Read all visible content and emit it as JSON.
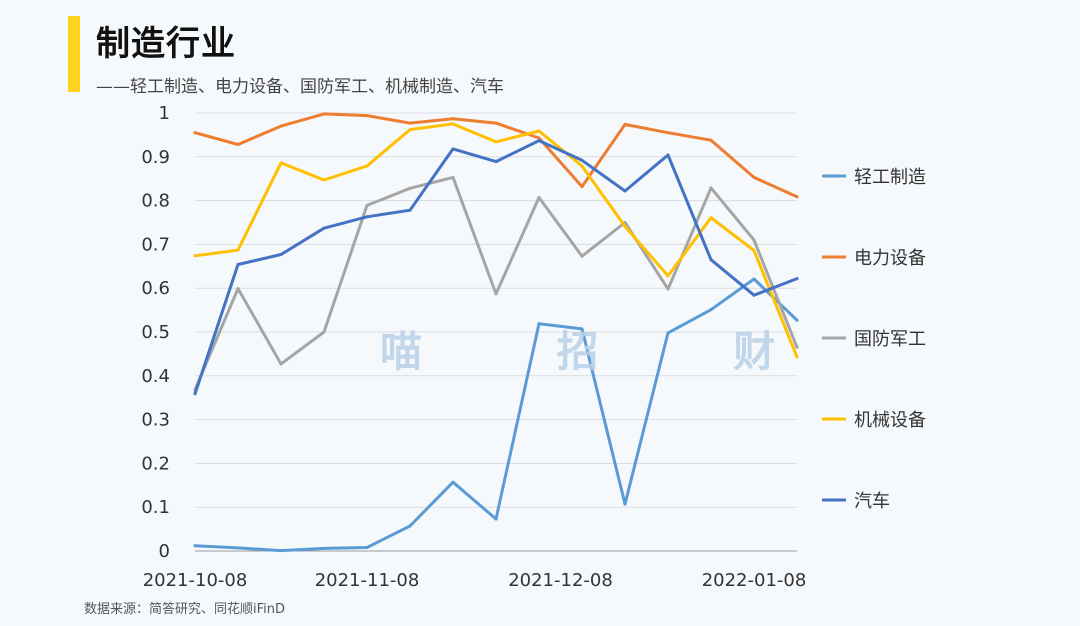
{
  "header": {
    "title": "制造行业",
    "subtitle": "——轻工制造、电力设备、国防军工、机械制造、汽车"
  },
  "watermark": "喵 招 财",
  "footer": {
    "source": "数据来源：简答研究、同花顺iFinD"
  },
  "colors": {
    "accent": "#ffd21f",
    "grid": "#d9dde2",
    "axis": "#999999"
  },
  "chart_data": {
    "type": "line",
    "x_tick_labels": [
      "2021-10-08",
      "2021-11-08",
      "2021-12-08",
      "2022-01-08"
    ],
    "y_tick_labels": [
      "0",
      "0.1",
      "0.2",
      "0.3",
      "0.4",
      "0.5",
      "0.6",
      "0.7",
      "0.8",
      "0.9",
      "1"
    ],
    "ylim": [
      0,
      1
    ],
    "num_points": 15,
    "x_tick_indices": [
      0,
      4,
      8.5,
      13
    ],
    "grid": true,
    "legend_position": "right",
    "series": [
      {
        "name": "轻工制造",
        "color": "#5b9bd5",
        "values": [
          0.012,
          0.007,
          0.001,
          0.006,
          0.008,
          0.057,
          0.157,
          0.073,
          0.519,
          0.507,
          0.107,
          0.498,
          0.551,
          0.621,
          0.527
        ]
      },
      {
        "name": "电力设备",
        "color": "#ed7d31",
        "values": [
          0.955,
          0.928,
          0.97,
          0.998,
          0.994,
          0.977,
          0.987,
          0.977,
          0.943,
          0.832,
          0.974,
          0.955,
          0.938,
          0.853,
          0.809
        ]
      },
      {
        "name": "国防军工",
        "color": "#a5a5a5",
        "values": [
          0.368,
          0.599,
          0.427,
          0.5,
          0.789,
          0.828,
          0.853,
          0.587,
          0.807,
          0.673,
          0.75,
          0.598,
          0.829,
          0.71,
          0.465
        ]
      },
      {
        "name": "机械设备",
        "color": "#ffc000",
        "values": [
          0.674,
          0.687,
          0.886,
          0.847,
          0.879,
          0.962,
          0.975,
          0.934,
          0.959,
          0.879,
          0.741,
          0.628,
          0.761,
          0.686,
          0.443
        ]
      },
      {
        "name": "汽车",
        "color": "#4472c4",
        "values": [
          0.359,
          0.654,
          0.677,
          0.737,
          0.763,
          0.778,
          0.918,
          0.889,
          0.937,
          0.892,
          0.822,
          0.904,
          0.665,
          0.584,
          0.622
        ]
      }
    ]
  }
}
